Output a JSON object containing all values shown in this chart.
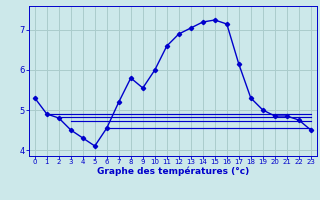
{
  "title": "Graphe des températures (°c)",
  "background_color": "#cce8ea",
  "grid_color": "#aacccc",
  "line_color": "#0000cc",
  "hours": [
    0,
    1,
    2,
    3,
    4,
    5,
    6,
    7,
    8,
    9,
    10,
    11,
    12,
    13,
    14,
    15,
    16,
    17,
    18,
    19,
    20,
    21,
    22,
    23
  ],
  "temp_main": [
    5.3,
    4.9,
    4.8,
    4.5,
    4.3,
    4.1,
    4.55,
    5.2,
    5.8,
    5.55,
    6.0,
    6.6,
    6.9,
    7.05,
    7.2,
    7.25,
    7.15,
    6.15,
    5.3,
    5.0,
    4.85,
    4.85,
    4.75,
    4.5
  ],
  "flat_lines": [
    {
      "x": [
        1,
        23
      ],
      "y": [
        4.9,
        4.9
      ]
    },
    {
      "x": [
        2,
        23
      ],
      "y": [
        4.82,
        4.82
      ]
    },
    {
      "x": [
        3,
        23
      ],
      "y": [
        4.72,
        4.72
      ]
    },
    {
      "x": [
        6,
        23
      ],
      "y": [
        4.55,
        4.55
      ]
    }
  ],
  "ylim": [
    3.85,
    7.6
  ],
  "xlim": [
    -0.5,
    23.5
  ],
  "yticks": [
    4,
    5,
    6,
    7
  ],
  "xticks": [
    0,
    1,
    2,
    3,
    4,
    5,
    6,
    7,
    8,
    9,
    10,
    11,
    12,
    13,
    14,
    15,
    16,
    17,
    18,
    19,
    20,
    21,
    22,
    23
  ]
}
